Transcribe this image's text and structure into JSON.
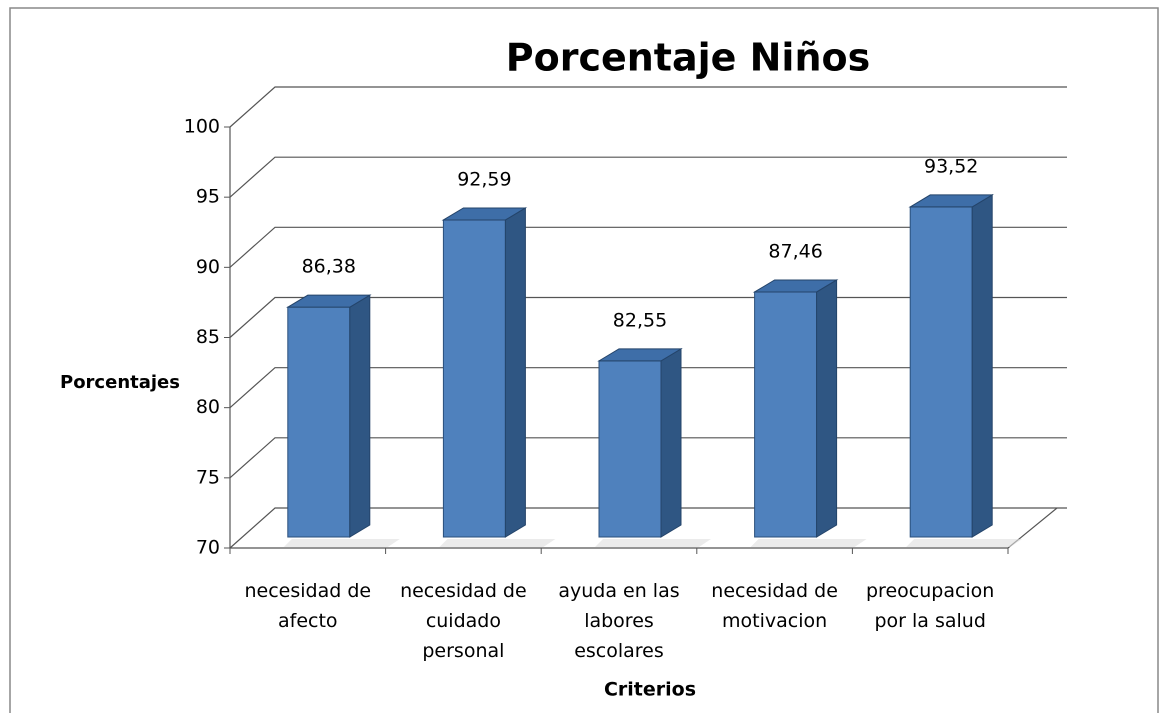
{
  "chart_data": {
    "type": "bar3d",
    "title": "Porcentaje Niños",
    "y_label": "Porcentajes",
    "x_label": "Criterios",
    "categories": [
      "necesidad de afecto",
      "necesidad de cuidado personal",
      "ayuda en las labores escolares",
      "necesidad de motivacion",
      "preocupacion por la salud"
    ],
    "values": [
      86.38,
      92.59,
      82.55,
      87.46,
      93.52
    ],
    "value_labels": [
      "86,38",
      "92,59",
      "82,55",
      "87,46",
      "93,52"
    ],
    "color": "#4f81bd",
    "ylim": [
      70,
      100
    ],
    "yticks": [
      70,
      75,
      80,
      85,
      90,
      95,
      100
    ],
    "grid": true
  }
}
